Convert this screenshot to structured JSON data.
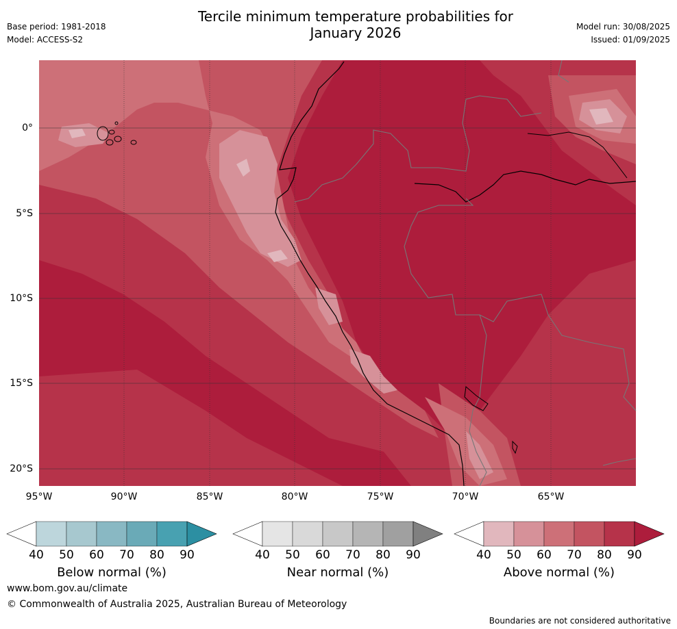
{
  "header": {
    "base_period": "Base period: 1981-2018",
    "model": "Model: ACCESS-S2",
    "title_line1": "Tercile minimum temperature probabilities for",
    "title_line2": "January 2026",
    "model_run": "Model run: 30/08/2025",
    "issued": "Issued: 01/09/2025"
  },
  "map": {
    "lat_labels": [
      "0°",
      "5°S",
      "10°S",
      "15°S",
      "20°S"
    ],
    "lon_labels": [
      "95°W",
      "90°W",
      "85°W",
      "80°W",
      "75°W",
      "70°W",
      "65°W"
    ],
    "lat_values": [
      0,
      -5,
      -10,
      -15,
      -20
    ],
    "lon_values": [
      -95,
      -90,
      -85,
      -80,
      -75,
      -70,
      -65
    ],
    "extent": {
      "lon_min": -95,
      "lon_max": -60,
      "lat_min": -21,
      "lat_max": 4
    },
    "dominant_category": "Above normal",
    "dominant_level_percent": 90
  },
  "colorbars": [
    {
      "title": "Below normal (%)",
      "ticks": [
        "40",
        "50",
        "60",
        "70",
        "80",
        "90"
      ],
      "colors": [
        "#ffffff",
        "#bdd6dc",
        "#a7c8cf",
        "#89b8c3",
        "#6aaab7",
        "#48a1b1",
        "#2c8fa2"
      ]
    },
    {
      "title": "Near normal (%)",
      "ticks": [
        "40",
        "50",
        "60",
        "70",
        "80",
        "90"
      ],
      "colors": [
        "#ffffff",
        "#e5e5e5",
        "#d9d9d9",
        "#c8c8c8",
        "#b5b5b5",
        "#a0a0a0",
        "#808080"
      ]
    },
    {
      "title": "Above normal (%)",
      "ticks": [
        "40",
        "50",
        "60",
        "70",
        "80",
        "90"
      ],
      "colors": [
        "#ffffff",
        "#e1b7bd",
        "#d69199",
        "#cd7078",
        "#c35461",
        "#b6334a",
        "#ad1d3c"
      ]
    }
  ],
  "footer": {
    "url": "www.bom.gov.au/climate",
    "copyright": "© Commonwealth of Australia 2025, Australian Bureau of Meteorology",
    "disclaimer": "Boundaries are not considered authoritative"
  }
}
